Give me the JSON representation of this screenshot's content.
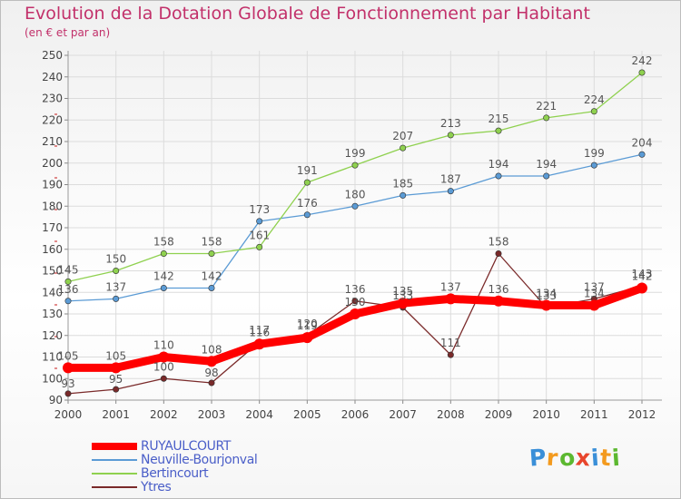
{
  "header": {
    "title": "Evolution de la Dotation Globale de Fonctionnement par Habitant",
    "subtitle": "(en € et par an)"
  },
  "chart_data": {
    "type": "line",
    "title": "Evolution de la Dotation Globale de Fonctionnement par Habitant",
    "subtitle": "(en € et par an)",
    "xlabel": "",
    "ylabel": "",
    "x": [
      "2000",
      "2001",
      "2002",
      "2003",
      "2004",
      "2005",
      "2006",
      "2007",
      "2008",
      "2009",
      "2010",
      "2011",
      "2012"
    ],
    "ylim": [
      90,
      250
    ],
    "yticks": [
      90,
      100,
      110,
      120,
      130,
      140,
      150,
      160,
      170,
      180,
      190,
      200,
      210,
      220,
      230,
      240,
      250
    ],
    "grid": true,
    "legend_position": "bottom-left",
    "series": [
      {
        "name": "RUYAULCOURT",
        "color": "#ff0000",
        "values": [
          105,
          105,
          110,
          108,
          116,
          119,
          130,
          135,
          137,
          136,
          134,
          134,
          142
        ]
      },
      {
        "name": "Neuville-Bourjonval",
        "color": "#5b9bd5",
        "values": [
          136,
          137,
          142,
          142,
          173,
          176,
          180,
          185,
          187,
          194,
          194,
          199,
          204
        ]
      },
      {
        "name": "Bertincourt",
        "color": "#8fd14f",
        "values": [
          145,
          150,
          158,
          158,
          161,
          191,
          199,
          207,
          213,
          215,
          221,
          224,
          242
        ]
      },
      {
        "name": "Ytres",
        "color": "#7a2a2a",
        "values": [
          93,
          95,
          100,
          98,
          117,
          120,
          136,
          133,
          111,
          158,
          133,
          137,
          143
        ]
      }
    ]
  },
  "logo": {
    "letters": [
      "P",
      "r",
      "o",
      "x",
      "i",
      "t",
      "i"
    ],
    "colors": [
      "#3a8fd8",
      "#f39a1e",
      "#5cb830",
      "#e8452c",
      "#3a8fd8",
      "#f39a1e",
      "#5cb830"
    ]
  }
}
